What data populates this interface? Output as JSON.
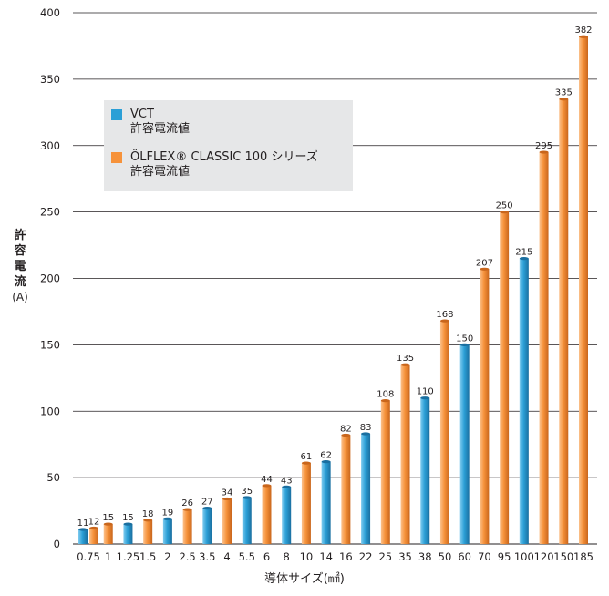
{
  "chart_data": {
    "type": "bar",
    "ylabel": {
      "chars": [
        "許",
        "容",
        "電",
        "流"
      ],
      "unit": "(A)"
    },
    "xlabel": "導体サイズ(㎟)",
    "ylim": [
      0,
      400
    ],
    "yticks": [
      0,
      50,
      100,
      150,
      200,
      250,
      300,
      350,
      400
    ],
    "grid": true,
    "legend_position": "upper-left",
    "series": [
      {
        "name": "VCT\n許容電流値",
        "legend_lines": [
          "VCT",
          "許容電流値"
        ],
        "color": "#2b9fd6"
      },
      {
        "name": "ÖLFLEX® CLASSIC 100 シリーズ\n許容電流値",
        "legend_lines": [
          "ÖLFLEX® CLASSIC 100 シリーズ",
          "許容電流値"
        ],
        "color": "#f6923a"
      }
    ],
    "categories": [
      "0.75",
      "1",
      "1.25",
      "1.5",
      "2",
      "2.5",
      "3.5",
      "4",
      "5.5",
      "6",
      "8",
      "10",
      "14",
      "16",
      "22",
      "25",
      "35",
      "38",
      "50",
      "60",
      "70",
      "95",
      "100",
      "120",
      "150",
      "185"
    ],
    "bars": [
      {
        "category": "0.75",
        "series": "VCT",
        "value": 11
      },
      {
        "category": "0.75",
        "series": "OLFLEX",
        "value": 12
      },
      {
        "category": "1",
        "series": "OLFLEX",
        "value": 15
      },
      {
        "category": "1.25",
        "series": "VCT",
        "value": 15
      },
      {
        "category": "1.5",
        "series": "OLFLEX",
        "value": 18
      },
      {
        "category": "2",
        "series": "VCT",
        "value": 19
      },
      {
        "category": "2.5",
        "series": "OLFLEX",
        "value": 26
      },
      {
        "category": "3.5",
        "series": "VCT",
        "value": 27
      },
      {
        "category": "4",
        "series": "OLFLEX",
        "value": 34
      },
      {
        "category": "5.5",
        "series": "VCT",
        "value": 35
      },
      {
        "category": "6",
        "series": "OLFLEX",
        "value": 44
      },
      {
        "category": "8",
        "series": "VCT",
        "value": 43
      },
      {
        "category": "10",
        "series": "OLFLEX",
        "value": 61
      },
      {
        "category": "14",
        "series": "VCT",
        "value": 62
      },
      {
        "category": "16",
        "series": "OLFLEX",
        "value": 82
      },
      {
        "category": "22",
        "series": "VCT",
        "value": 83
      },
      {
        "category": "25",
        "series": "OLFLEX",
        "value": 108
      },
      {
        "category": "35",
        "series": "OLFLEX",
        "value": 135
      },
      {
        "category": "38",
        "series": "VCT",
        "value": 110
      },
      {
        "category": "50",
        "series": "OLFLEX",
        "value": 168
      },
      {
        "category": "60",
        "series": "VCT",
        "value": 150
      },
      {
        "category": "70",
        "series": "OLFLEX",
        "value": 207
      },
      {
        "category": "95",
        "series": "OLFLEX",
        "value": 250
      },
      {
        "category": "100",
        "series": "VCT",
        "value": 215
      },
      {
        "category": "120",
        "series": "OLFLEX",
        "value": 295
      },
      {
        "category": "150",
        "series": "OLFLEX",
        "value": 335
      },
      {
        "category": "185",
        "series": "OLFLEX",
        "value": 382
      }
    ]
  }
}
